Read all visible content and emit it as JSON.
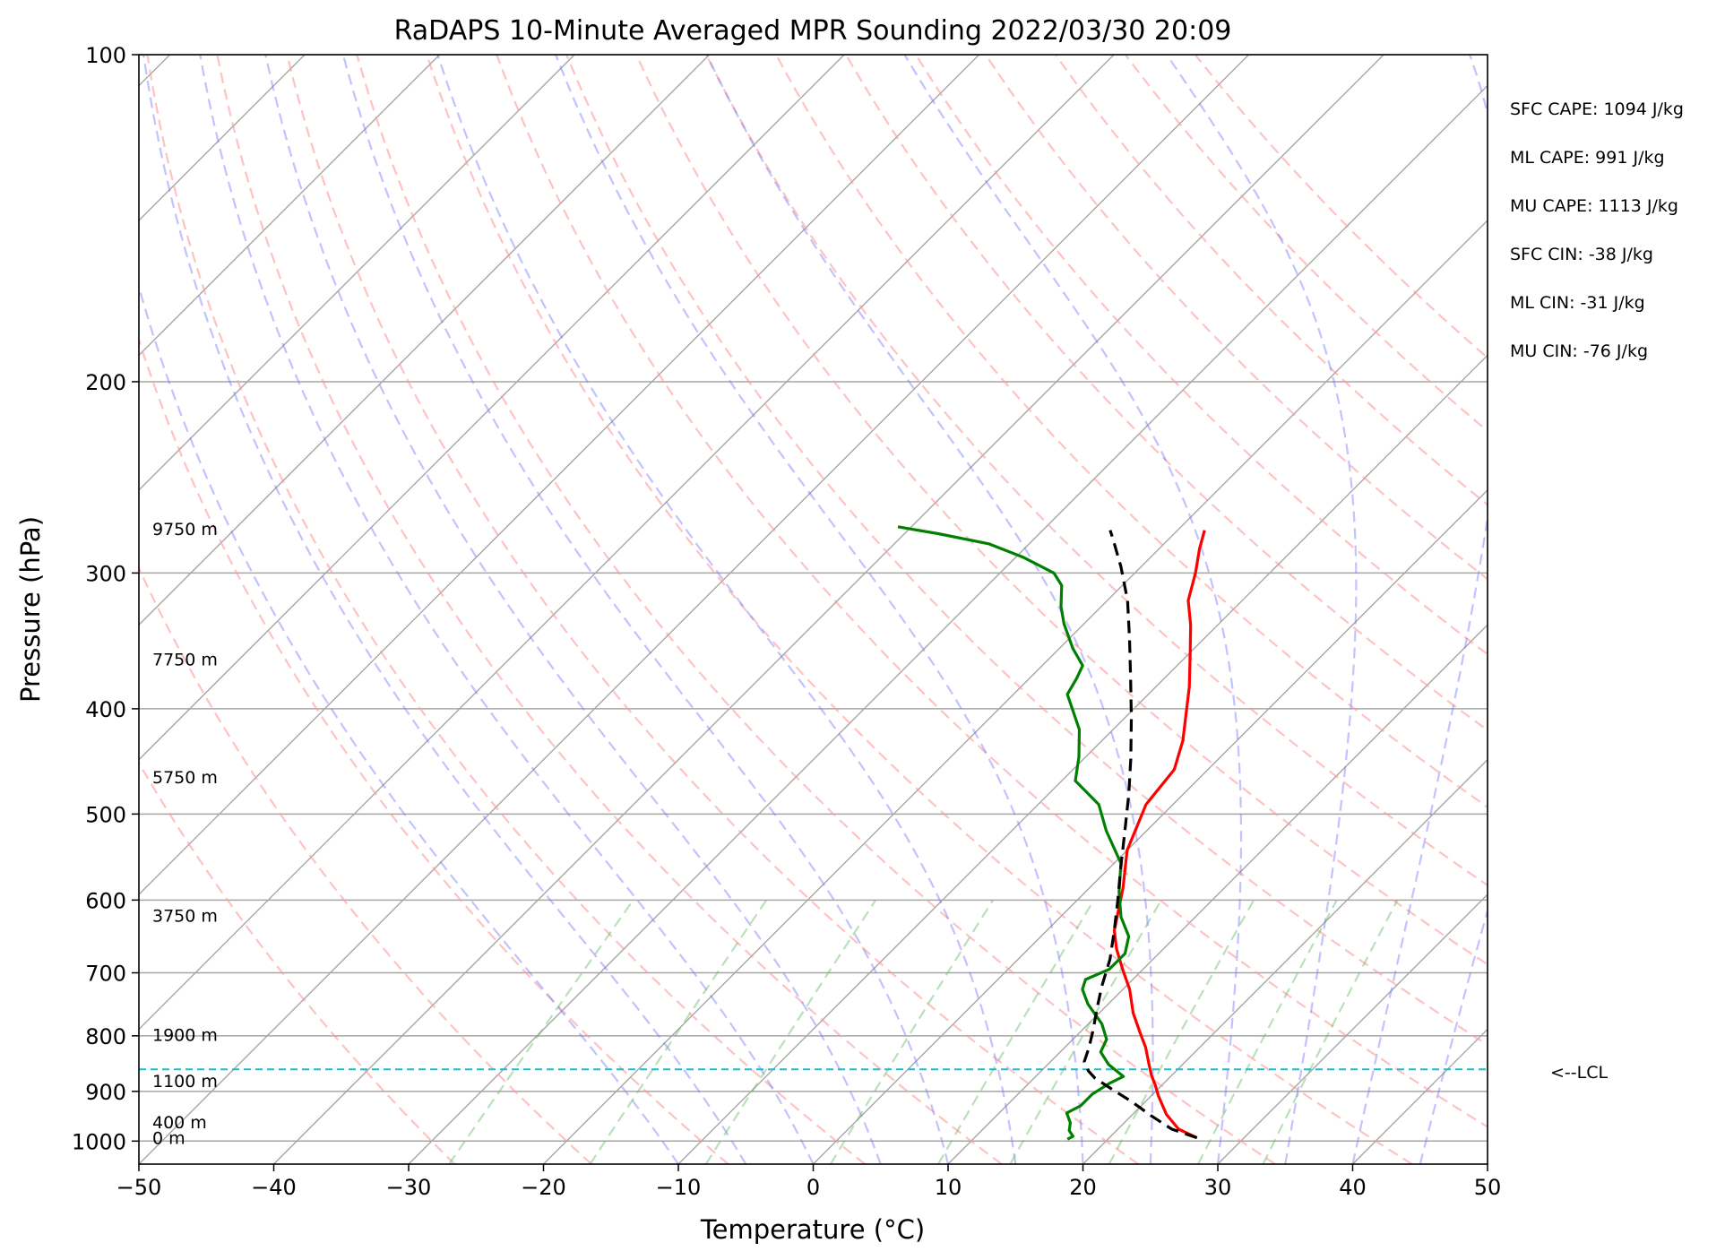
{
  "chart_data": {
    "type": "line",
    "title": "RaDAPS 10-Minute Averaged MPR Sounding 2022/03/30 20:09",
    "xlabel": "Temperature (°C)",
    "ylabel": "Pressure (hPa)",
    "xlim": [
      -50,
      50
    ],
    "ylim": [
      1050,
      100
    ],
    "y_scale": "log",
    "x_ticks": [
      "−50",
      "−40",
      "−30",
      "−20",
      "−10",
      "0",
      "10",
      "20",
      "30",
      "40",
      "50"
    ],
    "x_tick_values": [
      -50,
      -40,
      -30,
      -20,
      -10,
      0,
      10,
      20,
      30,
      40,
      50
    ],
    "y_ticks": [
      "100",
      "200",
      "300",
      "400",
      "500",
      "600",
      "700",
      "800",
      "900",
      "1000"
    ],
    "y_tick_values": [
      100,
      200,
      300,
      400,
      500,
      600,
      700,
      800,
      900,
      1000
    ],
    "grid": true,
    "skew": 35,
    "series": [
      {
        "id": "temperature",
        "color": "#ff0000",
        "points": [
          [
            26.5,
            993
          ],
          [
            24.5,
            975
          ],
          [
            22.5,
            945
          ],
          [
            20.5,
            908
          ],
          [
            19.5,
            888
          ],
          [
            18.5,
            870
          ],
          [
            17.5,
            850
          ],
          [
            16.0,
            820
          ],
          [
            14.5,
            795
          ],
          [
            12.5,
            762
          ],
          [
            10.5,
            725
          ],
          [
            8.5,
            695
          ],
          [
            6.5,
            665
          ],
          [
            5.0,
            640
          ],
          [
            2.5,
            585
          ],
          [
            0.0,
            540
          ],
          [
            -2.0,
            490
          ],
          [
            -2.5,
            455
          ],
          [
            -4.0,
            428
          ],
          [
            -7.5,
            382
          ],
          [
            -10.0,
            355
          ],
          [
            -12.0,
            335
          ],
          [
            -14.0,
            318
          ],
          [
            -15.5,
            300
          ],
          [
            -17.0,
            285
          ],
          [
            -18.0,
            274
          ]
        ]
      },
      {
        "id": "dewpoint",
        "color": "#008000",
        "points": [
          [
            17.0,
            996
          ],
          [
            17.2,
            990
          ],
          [
            16.5,
            978
          ],
          [
            16.0,
            962
          ],
          [
            15.0,
            942
          ],
          [
            15.5,
            928
          ],
          [
            15.5,
            905
          ],
          [
            16.0,
            884
          ],
          [
            16.5,
            872
          ],
          [
            14.5,
            850
          ],
          [
            13.0,
            828
          ],
          [
            12.5,
            806
          ],
          [
            11.0,
            780
          ],
          [
            8.5,
            748
          ],
          [
            7.0,
            725
          ],
          [
            6.5,
            710
          ],
          [
            7.5,
            695
          ],
          [
            7.5,
            672
          ],
          [
            6.5,
            648
          ],
          [
            4.5,
            622
          ],
          [
            2.5,
            590
          ],
          [
            0.5,
            555
          ],
          [
            -3.0,
            518
          ],
          [
            -5.5,
            490
          ],
          [
            -9.0,
            466
          ],
          [
            -10.5,
            443
          ],
          [
            -12.5,
            418
          ],
          [
            -16.0,
            388
          ],
          [
            -16.5,
            375
          ],
          [
            -17.0,
            365
          ],
          [
            -19.0,
            352
          ],
          [
            -21.5,
            334
          ],
          [
            -23.0,
            322
          ],
          [
            -24.5,
            308
          ],
          [
            -26.0,
            300
          ],
          [
            -29.5,
            290
          ],
          [
            -33.0,
            282
          ],
          [
            -37.5,
            276
          ],
          [
            -41.0,
            272
          ]
        ]
      },
      {
        "id": "parcel",
        "color": "#000000",
        "dash": "14,8",
        "points": [
          [
            26.5,
            993
          ],
          [
            24.0,
            975
          ],
          [
            21.5,
            948
          ],
          [
            19.0,
            920
          ],
          [
            16.5,
            895
          ],
          [
            14.5,
            875
          ],
          [
            13.5,
            862
          ],
          [
            12.5,
            845
          ],
          [
            11.8,
            820
          ],
          [
            10.8,
            790
          ],
          [
            9.5,
            755
          ],
          [
            8.2,
            720
          ],
          [
            6.8,
            680
          ],
          [
            5.0,
            640
          ],
          [
            3.0,
            600
          ],
          [
            0.8,
            560
          ],
          [
            -1.5,
            520
          ],
          [
            -4.0,
            480
          ],
          [
            -6.5,
            445
          ],
          [
            -9.5,
            408
          ],
          [
            -12.5,
            375
          ],
          [
            -15.5,
            345
          ],
          [
            -18.5,
            318
          ],
          [
            -21.5,
            296
          ],
          [
            -24.0,
            280
          ],
          [
            -25.0,
            274
          ]
        ]
      }
    ],
    "lcl": {
      "pressure": 859,
      "label": "<--LCL"
    },
    "height_labels": [
      {
        "text": "9750 m",
        "pressure": 273
      },
      {
        "text": "7750 m",
        "pressure": 360
      },
      {
        "text": "5750 m",
        "pressure": 462
      },
      {
        "text": "3750 m",
        "pressure": 620
      },
      {
        "text": "1900 m",
        "pressure": 798
      },
      {
        "text": "1100 m",
        "pressure": 880
      },
      {
        "text": "400 m",
        "pressure": 960
      },
      {
        "text": "0 m",
        "pressure": 993
      }
    ],
    "stats": [
      "SFC CAPE: 1094 J/kg",
      "ML CAPE: 991 J/kg",
      "MU CAPE: 1113 J/kg",
      "SFC CIN: -38 J/kg",
      "ML CIN: -31 J/kg",
      "MU CIN: -76 J/kg"
    ],
    "dry_adiabats_theta_c": [
      -30,
      -20,
      -10,
      0,
      10,
      20,
      30,
      40,
      50,
      60,
      70,
      80,
      90,
      100,
      110,
      120,
      130,
      140,
      150
    ],
    "moist_adiabats_start_c": [
      -10,
      -5,
      0,
      5,
      10,
      15,
      20,
      25,
      30,
      35,
      40,
      45
    ],
    "mixing_ratios_gkg": [
      0.4,
      1,
      2,
      4,
      7,
      10,
      16,
      24,
      32
    ]
  }
}
